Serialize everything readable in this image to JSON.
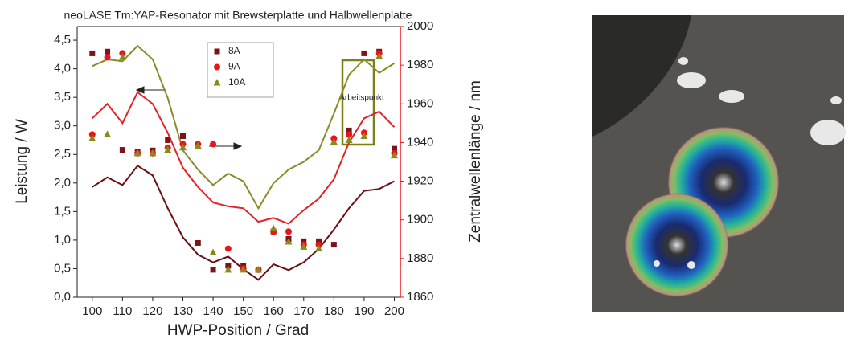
{
  "chart_data": {
    "type": "scatter",
    "title": "neoLASE Tm:YAP-Resonator mit Brewsterplatte und Halbwellenplatte",
    "xlabel": "HWP-Position / Grad",
    "ylabel": "Leistung / W",
    "y2label": "Zentralwellenlänge / nm",
    "annotation": "Arbeitspunkt",
    "x": [
      100,
      105,
      110,
      115,
      120,
      125,
      130,
      135,
      140,
      145,
      150,
      155,
      160,
      165,
      170,
      175,
      180,
      185,
      190,
      195,
      200
    ],
    "series": [
      {
        "name": "8A",
        "color": "#7b1418",
        "marker": "square",
        "values": [
          4.27,
          4.3,
          2.58,
          2.55,
          2.57,
          2.75,
          2.82,
          0.95,
          0.48,
          0.55,
          0.55,
          0.48,
          1.15,
          1.02,
          0.98,
          0.98,
          0.92,
          2.92,
          4.27,
          4.3,
          2.6
        ]
      },
      {
        "name": "9A",
        "color": "#e8161b",
        "marker": "circle",
        "values": [
          2.85,
          4.2,
          4.27,
          2.52,
          2.52,
          2.62,
          2.68,
          2.68,
          2.68,
          0.85,
          0.5,
          0.48,
          1.15,
          1.15,
          0.92,
          0.92,
          2.78,
          2.85,
          2.88,
          4.27,
          2.52
        ]
      },
      {
        "name": "10A",
        "color": "#8a8a1a",
        "marker": "triangle",
        "values": [
          2.78,
          2.85,
          4.2,
          2.52,
          2.52,
          2.58,
          2.62,
          2.65,
          0.78,
          0.48,
          0.48,
          0.48,
          1.2,
          0.97,
          0.88,
          0.85,
          2.72,
          2.75,
          2.82,
          4.22,
          2.48
        ]
      }
    ],
    "lines": [
      {
        "color": "#6b0f14",
        "axis": "y2",
        "values": [
          1917,
          1922,
          1918,
          1928,
          1923,
          1906,
          1891,
          1882,
          1878,
          1881,
          1874.5,
          1869,
          1877,
          1874,
          1878,
          1885,
          1895,
          1906,
          1915,
          1916,
          1920
        ]
      },
      {
        "color": "#e32228",
        "axis": "y2",
        "values": [
          1952.5,
          1960,
          1950,
          1966,
          1960,
          1945,
          1927,
          1917,
          1909,
          1907,
          1906,
          1899,
          1901,
          1898,
          1905,
          1911,
          1921,
          1940,
          1952.5,
          1956,
          1948
        ]
      },
      {
        "color": "#8b8b2a",
        "axis": "y2",
        "values": [
          1979.5,
          1983,
          1982,
          1990,
          1983,
          1963,
          1936,
          1926,
          1918,
          1924,
          1920,
          1906,
          1919,
          1926,
          1930,
          1936,
          1955,
          1975,
          1983,
          1976,
          1981
        ]
      }
    ],
    "xlim": [
      95,
      202
    ],
    "xticks": [
      100,
      110,
      120,
      130,
      140,
      150,
      160,
      170,
      180,
      190,
      200
    ],
    "ylim": [
      0,
      4.74
    ],
    "yticks": [
      {
        "value": 0,
        "label": "0,0"
      },
      {
        "value": 0.5,
        "label": "0,5"
      },
      {
        "value": 1,
        "label": "1,0"
      },
      {
        "value": 1.5,
        "label": "1,5"
      },
      {
        "value": 2,
        "label": "2,0"
      },
      {
        "value": 2.5,
        "label": "2,5"
      },
      {
        "value": 3,
        "label": "3,0"
      },
      {
        "value": 3.5,
        "label": "3,5"
      },
      {
        "value": 4,
        "label": "4,0"
      },
      {
        "value": 4.5,
        "label": "4,5"
      }
    ],
    "y2lim": [
      1860,
      2000
    ],
    "y2ticks": [
      1860,
      1880,
      1900,
      1920,
      1940,
      1960,
      1980,
      2000
    ],
    "y2color": "#e8161b"
  }
}
